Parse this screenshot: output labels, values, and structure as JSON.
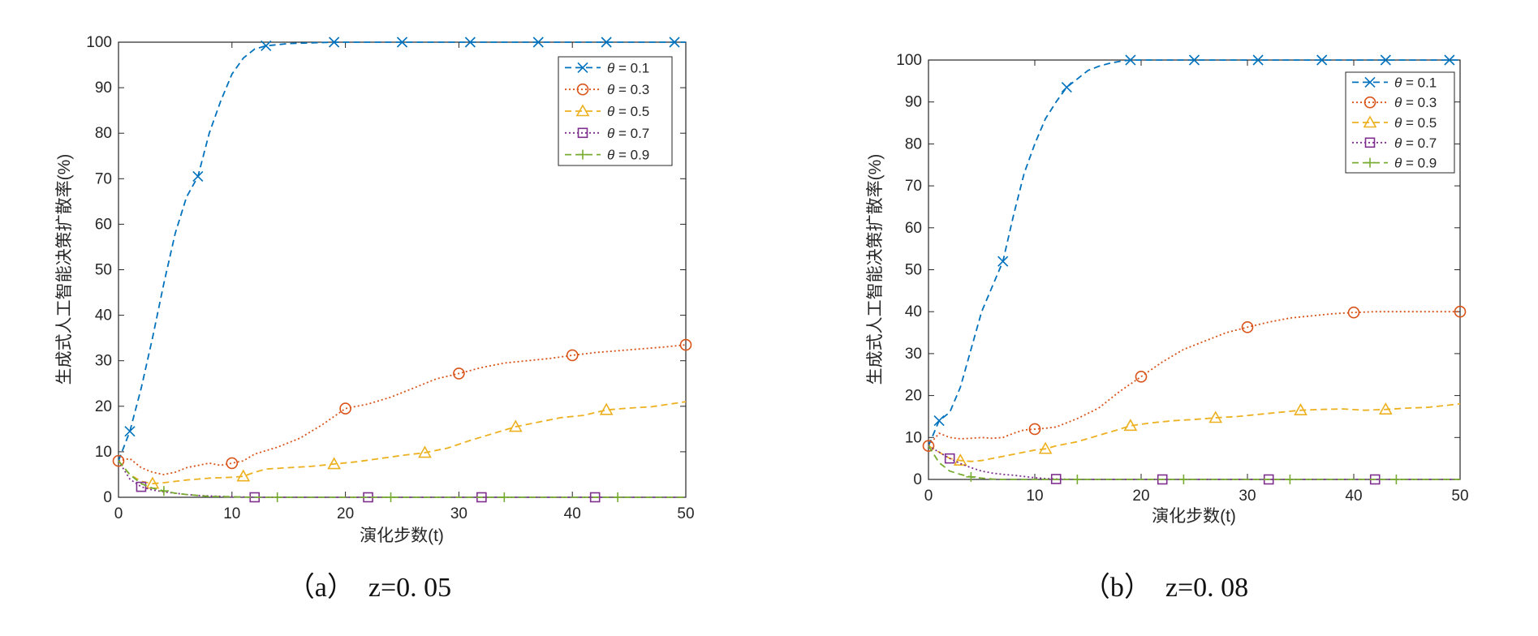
{
  "chart_data": [
    {
      "type": "line",
      "caption": "（a）　z=0. 05",
      "xlabel": "演化步数(t)",
      "ylabel": "生成式人工智能决策扩散率(%)",
      "xlim": [
        0,
        50
      ],
      "ylim": [
        0,
        100
      ],
      "xticks": [
        "0",
        "10",
        "20",
        "30",
        "40",
        "50"
      ],
      "yticks": [
        "0",
        "10",
        "20",
        "30",
        "40",
        "50",
        "60",
        "70",
        "80",
        "90",
        "100"
      ],
      "legend_position": "top-right",
      "series": [
        {
          "name": "θ = 0.1",
          "greek": "θ",
          "suffix": " = 0.1",
          "color": "#0072BD",
          "dash": "8,5",
          "marker": "x",
          "x": [
            0,
            1,
            2,
            3,
            4,
            5,
            6,
            7,
            8,
            9,
            10,
            11,
            12,
            13,
            15,
            19,
            25,
            31,
            37,
            43,
            50
          ],
          "y": [
            8,
            14.5,
            24,
            35,
            47,
            58,
            66,
            70.5,
            80,
            87,
            93,
            96.5,
            98.5,
            99.2,
            99.7,
            100,
            100,
            100,
            100,
            100,
            100
          ],
          "markers_x": [
            1,
            7,
            13,
            19,
            25,
            31,
            37,
            43,
            49
          ]
        },
        {
          "name": "θ = 0.3",
          "greek": "θ",
          "suffix": " = 0.3",
          "color": "#D95319",
          "dash": "2,3",
          "marker": "o",
          "x": [
            0,
            1,
            2,
            3,
            4,
            5,
            6,
            7,
            8,
            9,
            10,
            11,
            12,
            14,
            16,
            18,
            20,
            22,
            24,
            26,
            28,
            30,
            32,
            34,
            36,
            38,
            40,
            42,
            44,
            46,
            48,
            50
          ],
          "y": [
            8,
            8.5,
            6.5,
            5.5,
            5,
            5.5,
            6.5,
            7,
            7.5,
            7,
            7.5,
            8,
            9.5,
            11,
            13,
            16,
            19.5,
            20.5,
            22,
            24,
            26,
            27.2,
            28.5,
            29.5,
            30,
            30.5,
            31.2,
            31.8,
            32.2,
            32.6,
            33,
            33.5
          ],
          "markers_x": [
            0,
            10,
            20,
            30,
            40,
            50
          ]
        },
        {
          "name": "θ = 0.5",
          "greek": "θ",
          "suffix": " = 0.5",
          "color": "#EDB120",
          "dash": "8,5",
          "marker": "triangle",
          "x": [
            0,
            1,
            2,
            3,
            4,
            5,
            6,
            7,
            8,
            9,
            10,
            11,
            12,
            13,
            15,
            17,
            19,
            21,
            23,
            25,
            27,
            29,
            31,
            33,
            35,
            37,
            39,
            41,
            43,
            45,
            47,
            50
          ],
          "y": [
            8,
            5,
            3.5,
            3,
            3.2,
            3.5,
            3.8,
            4,
            4.2,
            4.3,
            4.4,
            4.6,
            5.5,
            6.2,
            6.5,
            6.8,
            7.3,
            7.8,
            8.5,
            9.2,
            9.8,
            10.8,
            12.5,
            14,
            15.5,
            16.5,
            17.5,
            18,
            19.2,
            19.6,
            19.9,
            21
          ],
          "markers_x": [
            3,
            11,
            19,
            27,
            35,
            43
          ]
        },
        {
          "name": "θ = 0.7",
          "greek": "θ",
          "suffix": " = 0.7",
          "color": "#7E2F8E",
          "dash": "2,3",
          "marker": "square",
          "x": [
            0,
            1,
            2,
            3,
            4,
            5,
            6,
            7,
            8,
            9,
            10,
            11,
            12,
            14,
            20,
            30,
            40,
            50
          ],
          "y": [
            8,
            4,
            2.3,
            1.6,
            1.2,
            0.9,
            0.6,
            0.4,
            0.3,
            0.2,
            0.1,
            0.05,
            0,
            0,
            0,
            0,
            0,
            0
          ],
          "markers_x": [
            2,
            12,
            22,
            32,
            42
          ]
        },
        {
          "name": "θ = 0.9",
          "greek": "θ",
          "suffix": " = 0.9",
          "color": "#77AC30",
          "dash": "8,5",
          "marker": "plus",
          "x": [
            0,
            1,
            2,
            3,
            4,
            5,
            6,
            7,
            8,
            10,
            12,
            14,
            20,
            30,
            40,
            50
          ],
          "y": [
            8,
            5,
            3,
            2,
            1.4,
            0.9,
            0.6,
            0.4,
            0.2,
            0.1,
            0,
            0,
            0,
            0,
            0,
            0
          ],
          "markers_x": [
            4,
            14,
            24,
            34,
            44
          ]
        }
      ]
    },
    {
      "type": "line",
      "caption": "（b）　z=0. 08",
      "xlabel": "演化步数(t)",
      "ylabel": "生成式人工智能决策扩散率(%)",
      "xlim": [
        0,
        50
      ],
      "ylim": [
        0,
        100
      ],
      "xticks": [
        "0",
        "10",
        "20",
        "30",
        "40",
        "50"
      ],
      "yticks": [
        "0",
        "10",
        "20",
        "30",
        "40",
        "50",
        "60",
        "70",
        "80",
        "90",
        "100"
      ],
      "legend_position": "top-right",
      "series": [
        {
          "name": "θ = 0.1",
          "greek": "θ",
          "suffix": " = 0.1",
          "color": "#0072BD",
          "dash": "8,5",
          "marker": "x",
          "x": [
            0,
            1,
            2,
            3,
            4,
            5,
            6,
            7,
            8,
            9,
            10,
            11,
            12,
            13,
            14,
            15,
            16,
            17,
            18,
            19,
            25,
            31,
            37,
            43,
            49,
            50
          ],
          "y": [
            8,
            14,
            16,
            22,
            31,
            40,
            46,
            52,
            63,
            73,
            80,
            86,
            90,
            93.5,
            95.5,
            97.5,
            98.5,
            99.2,
            99.7,
            100,
            100,
            100,
            100,
            100,
            100,
            100
          ],
          "markers_x": [
            1,
            7,
            13,
            19,
            25,
            31,
            37,
            43,
            49
          ]
        },
        {
          "name": "θ = 0.3",
          "greek": "θ",
          "suffix": " = 0.3",
          "color": "#D95319",
          "dash": "2,3",
          "marker": "o",
          "x": [
            0,
            1,
            2,
            3,
            4,
            5,
            6,
            7,
            8,
            9,
            10,
            11,
            12,
            14,
            16,
            18,
            20,
            22,
            24,
            26,
            28,
            30,
            32,
            34,
            36,
            38,
            40,
            42,
            44,
            46,
            48,
            50
          ],
          "y": [
            8,
            11,
            10,
            9.7,
            9.8,
            10,
            9.8,
            10,
            11,
            11.8,
            12,
            12.2,
            12.5,
            14.5,
            17,
            21,
            24.5,
            28,
            31,
            33,
            35,
            36.3,
            37.5,
            38.5,
            39,
            39.5,
            39.8,
            40,
            40,
            40,
            40,
            40
          ],
          "markers_x": [
            0,
            10,
            20,
            30,
            40,
            50
          ]
        },
        {
          "name": "θ = 0.5",
          "greek": "θ",
          "suffix": " = 0.5",
          "color": "#EDB120",
          "dash": "8,5",
          "marker": "triangle",
          "x": [
            0,
            1,
            2,
            3,
            4,
            5,
            6,
            7,
            8,
            9,
            10,
            11,
            12,
            14,
            16,
            18,
            19,
            21,
            23,
            25,
            27,
            29,
            31,
            33,
            35,
            37,
            39,
            41,
            43,
            45,
            47,
            50
          ],
          "y": [
            8,
            6.5,
            5,
            4.5,
            4.3,
            4.5,
            5,
            5.5,
            6,
            6.5,
            7,
            7.3,
            8,
            9,
            10.5,
            12,
            12.8,
            13.5,
            14,
            14.3,
            14.7,
            15,
            15.5,
            16,
            16.5,
            16.7,
            16.8,
            16.5,
            16.7,
            17,
            17.2,
            18
          ],
          "markers_x": [
            3,
            11,
            19,
            27,
            35,
            43
          ]
        },
        {
          "name": "θ = 0.7",
          "greek": "θ",
          "suffix": " = 0.7",
          "color": "#7E2F8E",
          "dash": "2,3",
          "marker": "square",
          "x": [
            0,
            1,
            2,
            3,
            4,
            5,
            6,
            7,
            8,
            9,
            10,
            11,
            12,
            14,
            20,
            30,
            40,
            50
          ],
          "y": [
            8,
            6.5,
            5,
            3.8,
            2.8,
            2,
            1.5,
            1.2,
            1,
            0.7,
            0.4,
            0.2,
            0.1,
            0,
            0,
            0,
            0,
            0
          ],
          "markers_x": [
            2,
            12,
            22,
            32,
            42
          ]
        },
        {
          "name": "θ = 0.9",
          "greek": "θ",
          "suffix": " = 0.9",
          "color": "#77AC30",
          "dash": "8,5",
          "marker": "plus",
          "x": [
            0,
            1,
            2,
            3,
            4,
            5,
            6,
            7,
            8,
            10,
            12,
            14,
            20,
            30,
            40,
            50
          ],
          "y": [
            8,
            4,
            2,
            1.2,
            0.6,
            0.3,
            0.1,
            0,
            0,
            0,
            0,
            0,
            0,
            0,
            0,
            0
          ],
          "markers_x": [
            4,
            14,
            24,
            34,
            44
          ]
        }
      ]
    }
  ]
}
